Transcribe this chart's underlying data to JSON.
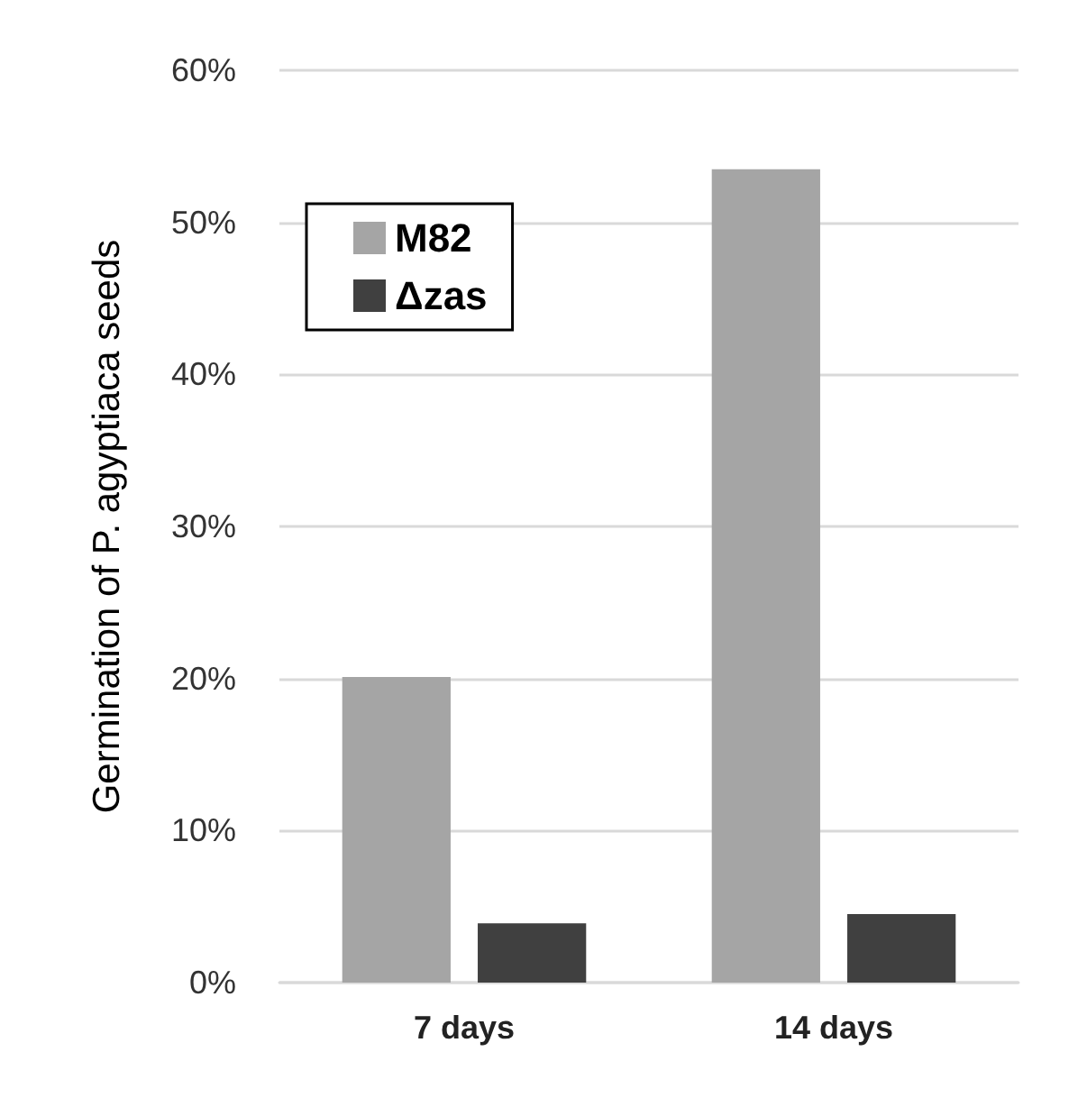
{
  "chart_data": {
    "type": "bar",
    "ylabel": "Germination of P. agyptiaca seeds",
    "categories": [
      "7 days",
      "14 days"
    ],
    "series": [
      {
        "name": "M82",
        "color": "#a5a5a5",
        "values": [
          20.1,
          53.5
        ]
      },
      {
        "name": "Δzas",
        "color": "#404040",
        "values": [
          3.9,
          4.5
        ]
      }
    ],
    "ylim": [
      0,
      60
    ],
    "yticks": [
      {
        "value": 0,
        "label": "0%"
      },
      {
        "value": 10,
        "label": "10%"
      },
      {
        "value": 20,
        "label": "20%"
      },
      {
        "value": 30,
        "label": "30%"
      },
      {
        "value": 40,
        "label": "40%"
      },
      {
        "value": 50,
        "label": "50%"
      },
      {
        "value": 60,
        "label": "60%"
      }
    ],
    "grid": "y",
    "legend": "top left"
  }
}
